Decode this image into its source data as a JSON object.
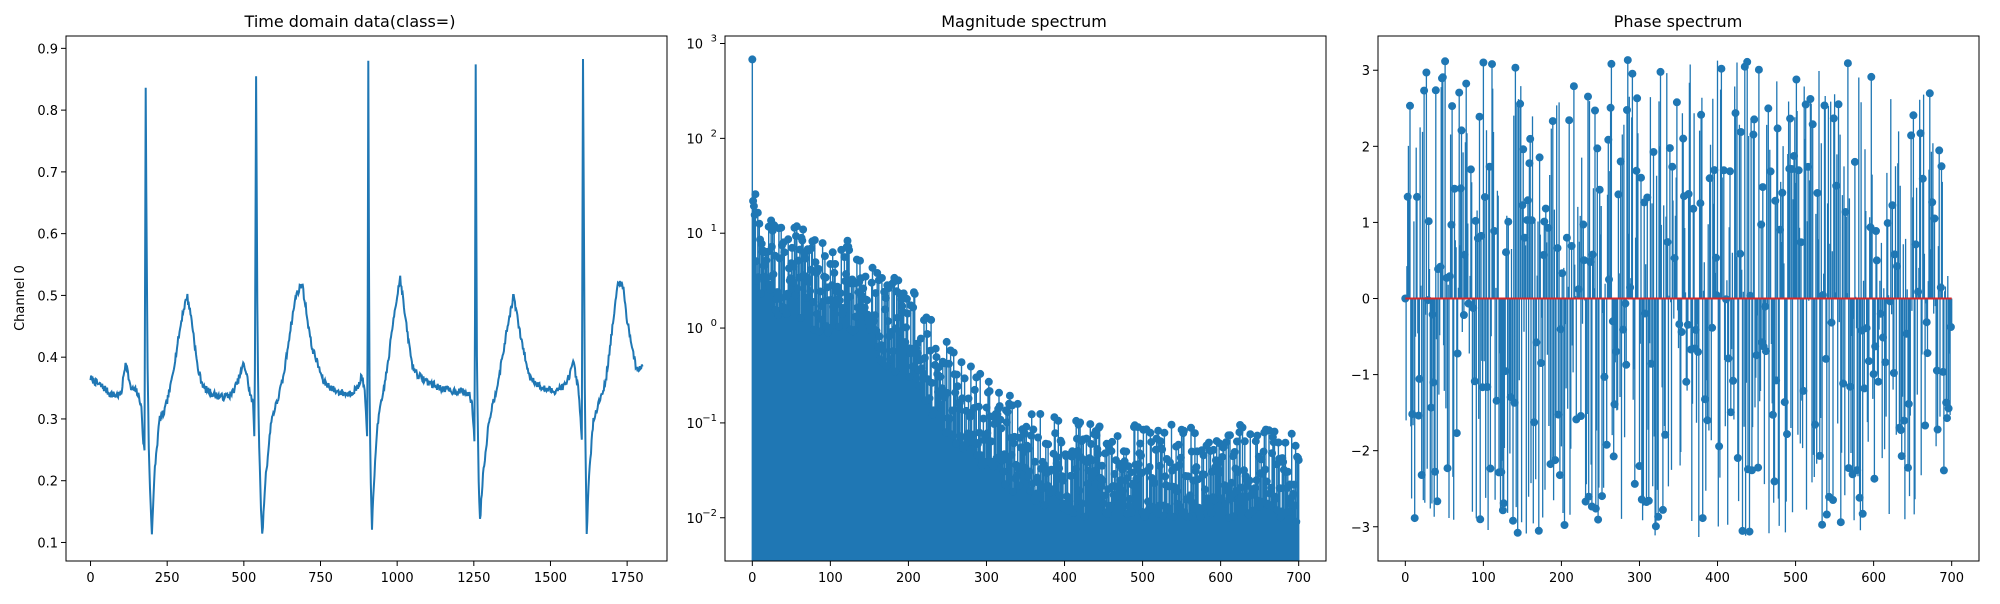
{
  "colors": {
    "line": "#1f77b4",
    "baseline": "#d62728",
    "axis": "#000000",
    "background": "#ffffff"
  },
  "chart_data": [
    {
      "type": "line",
      "title": "Time domain data(class=)",
      "xlabel": "",
      "ylabel": "Channel 0",
      "xlim": [
        -80,
        1880
      ],
      "ylim": [
        0.07,
        0.92
      ],
      "xticks": [
        0,
        250,
        500,
        750,
        1000,
        1250,
        1500,
        1750
      ],
      "xtick_labels": [
        "0",
        "250",
        "500",
        "750",
        "1000",
        "1250",
        "1500",
        "1750"
      ],
      "yticks": [
        0.1,
        0.2,
        0.3,
        0.4,
        0.5,
        0.6,
        0.7,
        0.8,
        0.9
      ],
      "ytick_labels": [
        "0.1",
        "0.2",
        "0.3",
        "0.4",
        "0.5",
        "0.6",
        "0.7",
        "0.8",
        "0.9"
      ],
      "grid": false,
      "series": [
        {
          "x": [
            0,
            20,
            40,
            60,
            80,
            100,
            115,
            130,
            150,
            165,
            172,
            176,
            180,
            185,
            190,
            195,
            200,
            210,
            225,
            240,
            260,
            280,
            300,
            315,
            330,
            350,
            370,
            400,
            430,
            460,
            480,
            500,
            510,
            520,
            530,
            535,
            540,
            545,
            550,
            555,
            560,
            570,
            590,
            610,
            630,
            650,
            670,
            690,
            720,
            760,
            800,
            840,
            870,
            885,
            895,
            903,
            906,
            909,
            913,
            918,
            925,
            935,
            950,
            970,
            990,
            1010,
            1030,
            1050,
            1070,
            1100,
            1140,
            1180,
            1210,
            1235,
            1245,
            1253,
            1256,
            1260,
            1265,
            1270,
            1280,
            1300,
            1320,
            1340,
            1360,
            1380,
            1400,
            1430,
            1470,
            1510,
            1550,
            1575,
            1590,
            1598,
            1602,
            1606,
            1612,
            1618,
            1625,
            1640,
            1660,
            1680,
            1700,
            1720,
            1735,
            1750,
            1780,
            1800
          ],
          "y": [
            0.366,
            0.358,
            0.352,
            0.342,
            0.338,
            0.34,
            0.395,
            0.35,
            0.345,
            0.325,
            0.26,
            0.25,
            0.838,
            0.42,
            0.25,
            0.175,
            0.118,
            0.22,
            0.3,
            0.31,
            0.35,
            0.41,
            0.47,
            0.5,
            0.46,
            0.38,
            0.35,
            0.34,
            0.335,
            0.34,
            0.36,
            0.39,
            0.37,
            0.34,
            0.325,
            0.26,
            0.857,
            0.4,
            0.25,
            0.17,
            0.11,
            0.2,
            0.3,
            0.33,
            0.37,
            0.44,
            0.5,
            0.52,
            0.42,
            0.36,
            0.345,
            0.34,
            0.35,
            0.37,
            0.34,
            0.26,
            0.874,
            0.38,
            0.22,
            0.125,
            0.2,
            0.29,
            0.33,
            0.39,
            0.47,
            0.53,
            0.45,
            0.385,
            0.37,
            0.36,
            0.35,
            0.345,
            0.345,
            0.34,
            0.32,
            0.26,
            0.869,
            0.4,
            0.22,
            0.135,
            0.21,
            0.3,
            0.34,
            0.39,
            0.45,
            0.5,
            0.44,
            0.37,
            0.35,
            0.345,
            0.355,
            0.39,
            0.35,
            0.3,
            0.27,
            0.878,
            0.35,
            0.115,
            0.2,
            0.3,
            0.33,
            0.36,
            0.44,
            0.52,
            0.52,
            0.46,
            0.38,
            0.385
          ]
        }
      ]
    },
    {
      "type": "stem",
      "title": "Magnitude spectrum",
      "xlabel": "",
      "ylabel": "",
      "yscale": "log",
      "xlim": [
        -35,
        735
      ],
      "ylim": [
        0.0035,
        1200
      ],
      "xticks": [
        0,
        100,
        200,
        300,
        400,
        500,
        600,
        700
      ],
      "xtick_labels": [
        "0",
        "100",
        "200",
        "300",
        "400",
        "500",
        "600",
        "700"
      ],
      "yticks": [
        0.01,
        0.1,
        1,
        10,
        100,
        1000
      ],
      "ytick_labels": [
        "10",
        "10",
        "10",
        "10",
        "10",
        "10"
      ],
      "ytick_exponents": [
        "−2",
        "−1",
        "0",
        "1",
        "2",
        "3"
      ],
      "grid": false,
      "spike": {
        "x": 0,
        "y": 680
      },
      "envelope": {
        "x": [
          1,
          3,
          6,
          10,
          20,
          30,
          40,
          60,
          80,
          100,
          120,
          140,
          160,
          180,
          200,
          220,
          240,
          260,
          280,
          300,
          320,
          340,
          360,
          380,
          400,
          430,
          460,
          500,
          550,
          600,
          650,
          700
        ],
        "y": [
          38,
          35,
          22,
          14,
          16,
          13,
          12,
          13,
          9,
          8,
          8.5,
          7,
          4.5,
          3.5,
          3,
          1.6,
          0.9,
          0.6,
          0.45,
          0.3,
          0.22,
          0.17,
          0.14,
          0.12,
          0.11,
          0.1,
          0.1,
          0.1,
          0.1,
          0.1,
          0.1,
          0.09
        ]
      }
    },
    {
      "type": "stem",
      "title": "Phase spectrum",
      "xlabel": "",
      "ylabel": "",
      "xlim": [
        -35,
        735
      ],
      "ylim": [
        -3.45,
        3.45
      ],
      "xticks": [
        0,
        100,
        200,
        300,
        400,
        500,
        600,
        700
      ],
      "xtick_labels": [
        "0",
        "100",
        "200",
        "300",
        "400",
        "500",
        "600",
        "700"
      ],
      "yticks": [
        -3,
        -2,
        -1,
        0,
        1,
        2,
        3
      ],
      "ytick_labels": [
        "−3",
        "−2",
        "−1",
        "0",
        "1",
        "2",
        "3"
      ],
      "grid": false,
      "baseline": 0,
      "n_points": 701,
      "value_range": [
        -3.14159,
        3.14159
      ]
    }
  ]
}
